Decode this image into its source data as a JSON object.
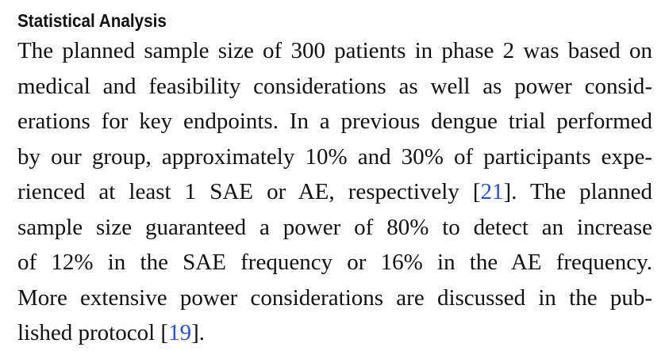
{
  "section": {
    "heading": "Statistical Analysis",
    "lines": [
      {
        "segments": [
          {
            "text": "The planned sample size of 300 patients in phase 2 was based on"
          }
        ]
      },
      {
        "segments": [
          {
            "text": "medical and feasibility considerations as well as power consid-"
          }
        ]
      },
      {
        "segments": [
          {
            "text": "erations for key endpoints. In a previous dengue trial performed"
          }
        ]
      },
      {
        "segments": [
          {
            "text": "by our group, approximately 10% and 30% of participants expe-"
          }
        ]
      },
      {
        "segments": [
          {
            "text": "rienced at least 1 SAE or AE, respectively ["
          },
          {
            "text": "21",
            "cite": true
          },
          {
            "text": "]. The planned"
          }
        ]
      },
      {
        "segments": [
          {
            "text": "sample size guaranteed a power of 80% to detect an increase"
          }
        ]
      },
      {
        "segments": [
          {
            "text": "of 12% in the SAE frequency or 16% in the AE frequency."
          }
        ]
      },
      {
        "segments": [
          {
            "text": "More extensive power considerations are discussed in the pub-"
          }
        ]
      },
      {
        "segments": [
          {
            "text": "lished protocol ["
          },
          {
            "text": "19",
            "cite": true
          },
          {
            "text": "]."
          }
        ]
      }
    ]
  }
}
